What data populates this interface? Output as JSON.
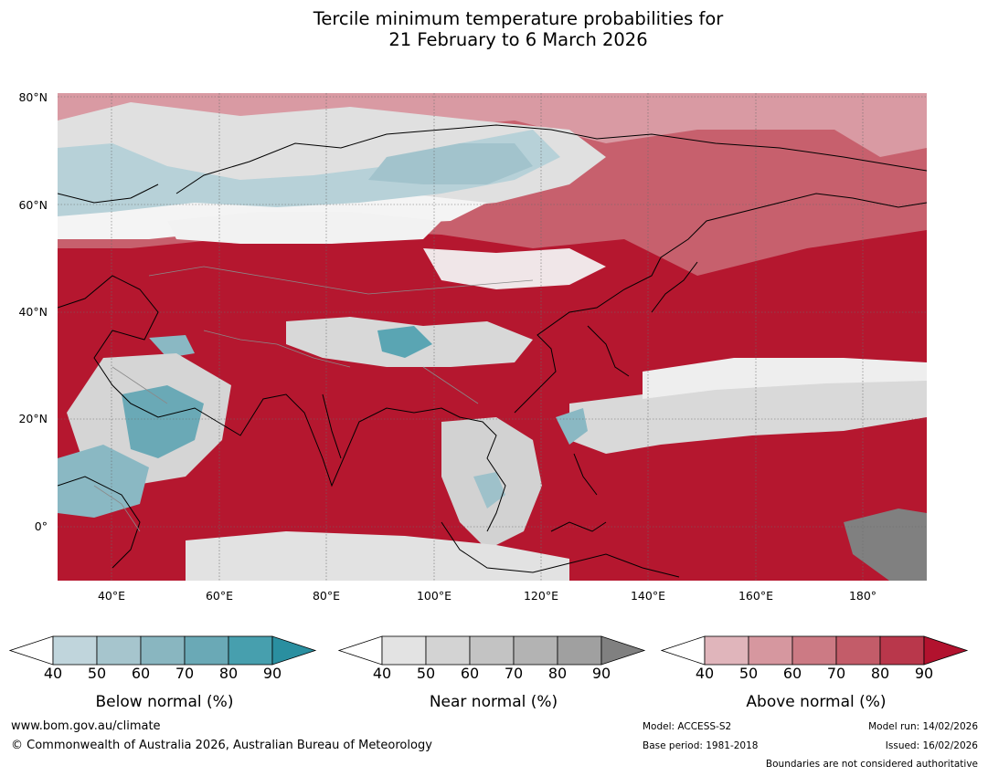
{
  "title": {
    "line1": "Tercile minimum temperature probabilities for",
    "line2": "21 February to 6 March 2026"
  },
  "map": {
    "lat_labels": [
      "80°N",
      "60°N",
      "40°N",
      "20°N",
      "0°"
    ],
    "lon_labels": [
      "40°E",
      "60°E",
      "80°E",
      "100°E",
      "120°E",
      "140°E",
      "160°E",
      "180°"
    ]
  },
  "legends": [
    {
      "title": "Below normal (%)",
      "ticks": [
        "40",
        "50",
        "60",
        "70",
        "80",
        "90"
      ],
      "colors": [
        "#ffffff",
        "#c0d5dc",
        "#a6c5cd",
        "#89b6c0",
        "#6aa9b6",
        "#479fae",
        "#2a8fa0"
      ]
    },
    {
      "title": "Near normal (%)",
      "ticks": [
        "40",
        "50",
        "60",
        "70",
        "80",
        "90"
      ],
      "colors": [
        "#ffffff",
        "#e3e3e3",
        "#d3d3d3",
        "#c3c3c3",
        "#b3b3b3",
        "#a0a0a0",
        "#808080"
      ]
    },
    {
      "title": "Above normal (%)",
      "ticks": [
        "40",
        "50",
        "60",
        "70",
        "80",
        "90"
      ],
      "colors": [
        "#ffffff",
        "#e0b5bb",
        "#d6979f",
        "#cc7a84",
        "#c35c69",
        "#b9374b",
        "#b2122e"
      ]
    }
  ],
  "footer": {
    "website": "www.bom.gov.au/climate",
    "copyright": "© Commonwealth of Australia 2026, Australian Bureau of Meteorology",
    "model": "Model: ACCESS-S2",
    "base_period": "Base period: 1981-2018",
    "model_run": "Model run: 14/02/2026",
    "issued": "Issued: 16/02/2026",
    "boundaries": "Boundaries are not considered authoritative"
  }
}
